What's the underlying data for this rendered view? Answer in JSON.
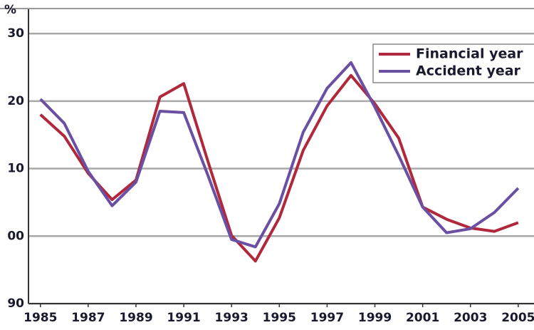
{
  "chart_data": {
    "type": "line",
    "y_label": "%",
    "x": [
      1985,
      1986,
      1987,
      1988,
      1989,
      1990,
      1991,
      1992,
      1993,
      1994,
      1995,
      1996,
      1997,
      1998,
      1999,
      2000,
      2001,
      2002,
      2003,
      2004,
      2005
    ],
    "series": [
      {
        "name": "Financial year",
        "color": "#b0283c",
        "values": [
          118.0,
          114.8,
          109.3,
          105.4,
          108.3,
          120.6,
          122.6,
          111.2,
          100.1,
          96.3,
          102.7,
          112.7,
          119.3,
          123.8,
          119.6,
          114.5,
          104.3,
          102.5,
          101.2,
          100.7,
          102.0
        ]
      },
      {
        "name": "Accident year",
        "color": "#6a4fa3",
        "values": [
          120.3,
          116.7,
          109.6,
          104.5,
          108.0,
          118.5,
          118.3,
          109.1,
          99.5,
          98.4,
          104.8,
          115.4,
          121.9,
          125.7,
          119.1,
          111.9,
          104.3,
          100.5,
          101.1,
          103.5,
          107.1
        ]
      }
    ],
    "xlim": [
      1984.5,
      2005.66
    ],
    "xticks": [
      1985,
      1987,
      1989,
      1991,
      1993,
      1995,
      1997,
      1999,
      2001,
      2003,
      2005
    ],
    "ylim": [
      90,
      133.6
    ],
    "yticks": [
      90,
      {
        "value": 100,
        "label": "00"
      },
      {
        "value": 110,
        "label": "10"
      },
      {
        "value": 120,
        "label": "20"
      },
      {
        "value": 130,
        "label": "30"
      }
    ],
    "grid": true,
    "legend": "upper right"
  }
}
